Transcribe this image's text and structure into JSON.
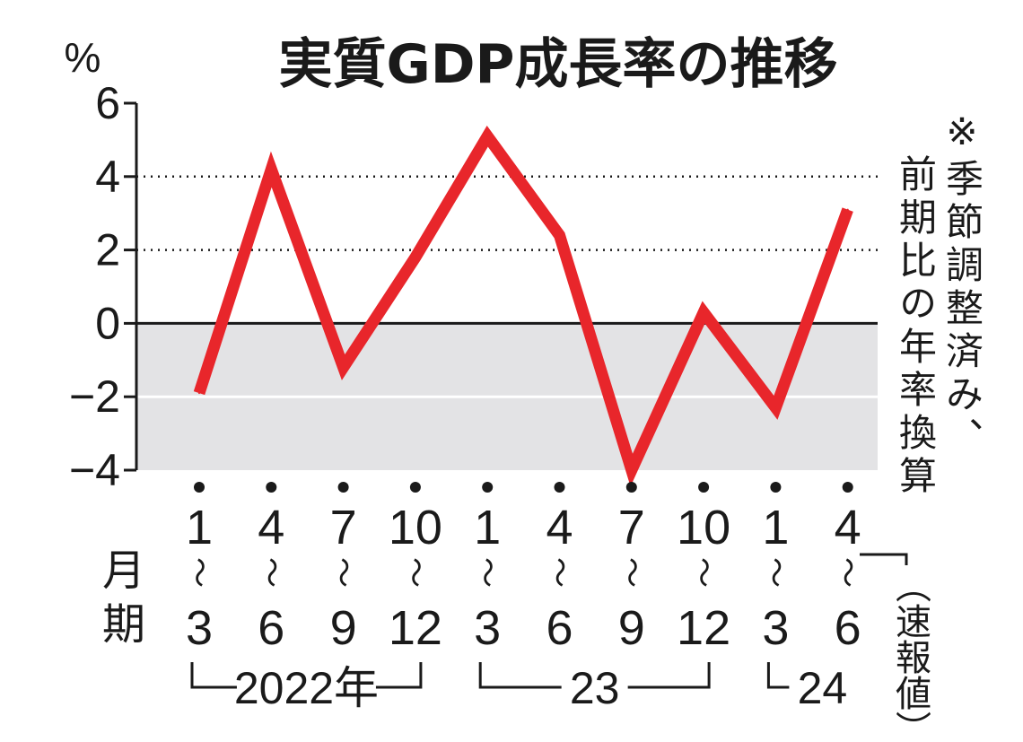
{
  "chart_data": {
    "type": "line",
    "title": "実質GDP成長率の推移",
    "ylabel": "%",
    "ylim": [
      -4,
      6
    ],
    "yticks": [
      "6",
      "4",
      "2",
      "0",
      "−2",
      "−4"
    ],
    "dotted_gridlines": [
      4,
      2
    ],
    "shaded_region": [
      -4,
      0
    ],
    "note_lines": [
      "※季節調整済み、",
      "前期比の年率換算"
    ],
    "x_axis_label": [
      "月",
      "期"
    ],
    "quarters": [
      {
        "start": "1",
        "end": "3"
      },
      {
        "start": "4",
        "end": "6"
      },
      {
        "start": "7",
        "end": "9"
      },
      {
        "start": "10",
        "end": "12"
      },
      {
        "start": "1",
        "end": "3"
      },
      {
        "start": "4",
        "end": "6"
      },
      {
        "start": "7",
        "end": "9"
      },
      {
        "start": "10",
        "end": "12"
      },
      {
        "start": "1",
        "end": "3"
      },
      {
        "start": "4",
        "end": "6"
      }
    ],
    "quarter_separator": "〜",
    "years": [
      {
        "label": "2022年",
        "from": 0,
        "to": 3
      },
      {
        "label": "23",
        "from": 4,
        "to": 7
      },
      {
        "label": "24",
        "from": 8,
        "to": 9
      }
    ],
    "preliminary_label": "（速報値）",
    "values": [
      -1.9,
      4.2,
      -1.2,
      1.8,
      5.1,
      2.4,
      -4.0,
      0.3,
      -2.3,
      3.1
    ],
    "line_color": "#e8262b",
    "shade_color": "#e3e3e5"
  }
}
